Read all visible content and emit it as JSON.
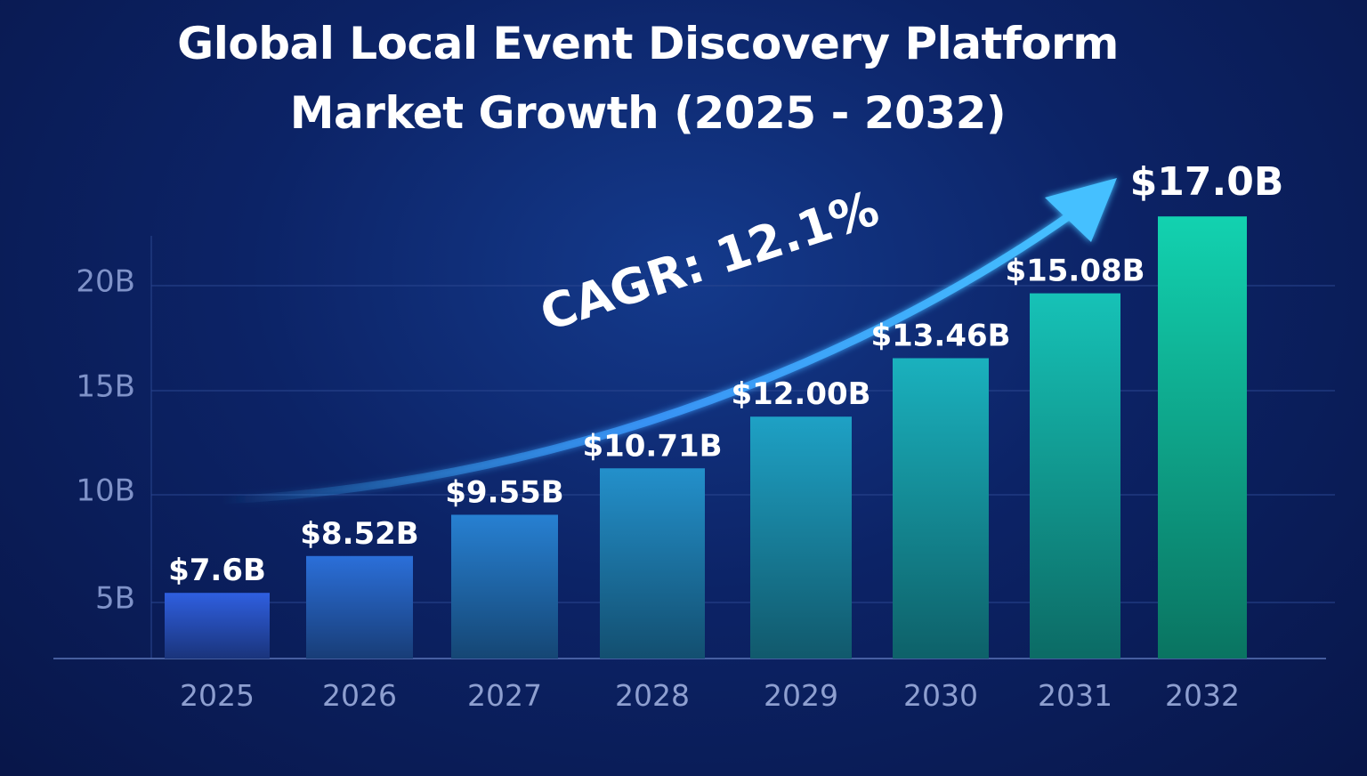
{
  "chart_data": {
    "type": "bar",
    "title": "Global Local Event Discovery Platform",
    "subtitle": "Market Growth (2025 - 2032)",
    "categories": [
      "2025",
      "2026",
      "2027",
      "2028",
      "2029",
      "2030",
      "2031",
      "2032"
    ],
    "values": [
      7.6,
      8.52,
      9.55,
      10.71,
      12.0,
      13.46,
      15.08,
      17.0
    ],
    "data_labels": [
      "$7.6B",
      "$8.52B",
      "$9.55B",
      "$10.71B",
      "$12.00B",
      "$13.46B",
      "$15.08B",
      "$17.0B"
    ],
    "y_ticks": [
      "5B",
      "10B",
      "15B",
      "20B"
    ],
    "xlabel": "",
    "ylabel": "",
    "grid": true,
    "annotation": "CAGR: 12.1%",
    "colors": {
      "start": "#2f5fe0",
      "end": "#12d2b0",
      "arrow": "#3bb6ff",
      "background": "#0c2366"
    }
  }
}
